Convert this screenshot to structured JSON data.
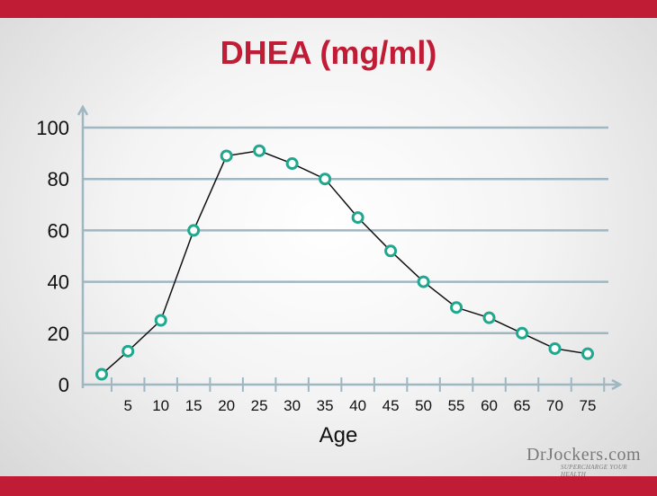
{
  "brand": {
    "name": "DrJockers.com",
    "tagline": "SUPERCHARGE YOUR HEALTH"
  },
  "colors": {
    "accent": "#c01c35",
    "marker": "#1fa88e",
    "line": "#111111",
    "grid": "#9fb7c2"
  },
  "chart_data": {
    "type": "line",
    "title": "DHEA (mg/ml)",
    "xlabel": "Age",
    "ylabel": "",
    "ylim": [
      0,
      100
    ],
    "y_ticks": [
      0,
      20,
      40,
      60,
      80,
      100
    ],
    "x_ticks": [
      5,
      10,
      15,
      20,
      25,
      30,
      35,
      40,
      45,
      50,
      55,
      60,
      65,
      70,
      75
    ],
    "grid": true,
    "series": [
      {
        "x": [
          1,
          5,
          10,
          15,
          20,
          25,
          30,
          35,
          40,
          45,
          50,
          55,
          60,
          65,
          70,
          75
        ],
        "values": [
          4,
          13,
          25,
          60,
          89,
          91,
          86,
          80,
          65,
          52,
          40,
          30,
          26,
          20,
          14,
          12
        ]
      }
    ]
  }
}
